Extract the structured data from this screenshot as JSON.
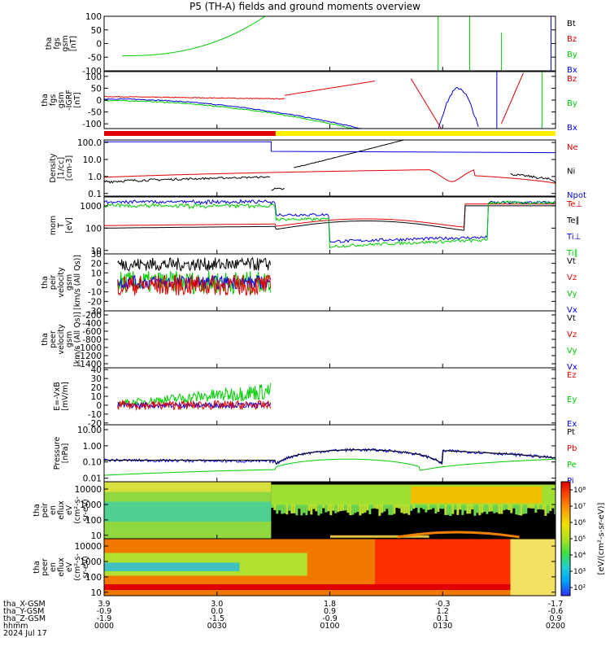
{
  "title": "P5 (TH-A) fields and ground moments overview",
  "date_label": "2024 Jul 17",
  "colors": {
    "black": "#000000",
    "red": "#e00000",
    "green": "#00cc00",
    "blue": "#0000e0",
    "yellow": "#ffee00"
  },
  "chart_data": [
    {
      "type": "line",
      "ylabel": [
        "tha",
        "fgs",
        "gsm",
        "[nT]"
      ],
      "yticks": [
        "100",
        "50",
        "0",
        "-50",
        "-100"
      ],
      "ylim": [
        -100,
        100
      ],
      "series": [
        {
          "name": "Bt",
          "color": "#000000"
        },
        {
          "name": "Bz",
          "color": "#e00000"
        },
        {
          "name": "By",
          "color": "#00cc00"
        },
        {
          "name": "Bx",
          "color": "#0000e0"
        }
      ]
    },
    {
      "type": "line",
      "ylabel": [
        "tha",
        "fgs",
        "gsm",
        "-IGRF",
        "[nT]"
      ],
      "yticks": [
        "100",
        "50",
        "0",
        "-50",
        "-100"
      ],
      "ylim": [
        -120,
        120
      ],
      "series": [
        {
          "name": "Bz",
          "color": "#e00000"
        },
        {
          "name": "By",
          "color": "#00cc00"
        },
        {
          "name": "Bx",
          "color": "#0000e0"
        }
      ]
    },
    {
      "type": "line",
      "ylabel": [
        "Density",
        "[1/cc]",
        "[cm-3]"
      ],
      "yticks": [
        "100.0",
        "10.0",
        "1.0",
        "0.1"
      ],
      "scale": "log",
      "ylim": [
        0.07,
        140
      ],
      "series": [
        {
          "name": "Ne",
          "color": "#e00000"
        },
        {
          "name": "Ni",
          "color": "#000000"
        },
        {
          "name": "Npot",
          "color": "#0000e0"
        }
      ]
    },
    {
      "type": "line",
      "ylabel": [
        "mom",
        "T",
        "[eV]"
      ],
      "yticks": [
        "1000",
        "100",
        "10"
      ],
      "scale": "log",
      "ylim": [
        7,
        2500
      ],
      "series": [
        {
          "name": "Te⊥",
          "color": "#e00000"
        },
        {
          "name": "Te∥",
          "color": "#000000"
        },
        {
          "name": "Ti⊥",
          "color": "#0000e0"
        },
        {
          "name": "Ti∥",
          "color": "#00cc00"
        }
      ]
    },
    {
      "type": "line",
      "ylabel": [
        "tha",
        "peir",
        "velocity",
        "gsm",
        "[km/s (All Qs)]"
      ],
      "yticks": [
        "30",
        "20",
        "10",
        "0",
        "-10",
        "-20",
        "-30"
      ],
      "ylim": [
        -30,
        30
      ],
      "series": [
        {
          "name": "Vt",
          "color": "#000000"
        },
        {
          "name": "Vz",
          "color": "#e00000"
        },
        {
          "name": "Vy",
          "color": "#00cc00"
        },
        {
          "name": "Vx",
          "color": "#0000e0"
        }
      ]
    },
    {
      "type": "line",
      "ylabel": [
        "tha",
        "peer",
        "velocity",
        "gsm",
        "[km/s (All Qs)]"
      ],
      "yticks": [
        "-200",
        "-400",
        "-600",
        "-800",
        "-1000",
        "-1200",
        "-1400"
      ],
      "ylim": [
        -1500,
        -100
      ],
      "series": [
        {
          "name": "Vt",
          "color": "#000000"
        },
        {
          "name": "Vz",
          "color": "#e00000"
        },
        {
          "name": "Vy",
          "color": "#00cc00"
        },
        {
          "name": "Vx",
          "color": "#0000e0"
        }
      ]
    },
    {
      "type": "line",
      "ylabel": [
        "E=-VxB",
        "[mV/m]"
      ],
      "yticks": [
        "40",
        "30",
        "20",
        "10",
        "0",
        "-10",
        "-20"
      ],
      "ylim": [
        -22,
        42
      ],
      "series": [
        {
          "name": "Ez",
          "color": "#e00000"
        },
        {
          "name": "Ey",
          "color": "#00cc00"
        },
        {
          "name": "Ex",
          "color": "#0000e0"
        }
      ]
    },
    {
      "type": "line",
      "ylabel": [
        "Pressure",
        "[nPa]"
      ],
      "yticks": [
        "10.00",
        "1.00",
        "0.10",
        "0.01"
      ],
      "scale": "log",
      "ylim": [
        0.006,
        20
      ],
      "series": [
        {
          "name": "Pt",
          "color": "#000000"
        },
        {
          "name": "Pb",
          "color": "#e00000"
        },
        {
          "name": "Pe",
          "color": "#00cc00"
        },
        {
          "name": "Pi",
          "color": "#0000e0"
        }
      ]
    },
    {
      "type": "heatmap",
      "ylabel": [
        "tha",
        "peir",
        "en",
        "eflux",
        "eV",
        "(cm²-s-",
        "sr-eV)"
      ],
      "yticks": [
        "10000",
        "1000",
        "100",
        "10"
      ],
      "scale": "log",
      "ylim": [
        6,
        30000
      ]
    },
    {
      "type": "heatmap",
      "ylabel": [
        "tha",
        "peer",
        "en",
        "eflux",
        "eV",
        "(cm²-s-",
        "sr-eV)"
      ],
      "yticks": [
        "10000",
        "1000",
        "100",
        "10"
      ],
      "scale": "log",
      "ylim": [
        6,
        30000
      ]
    }
  ],
  "colorbar": {
    "label": "[eV/(cm²-s-sr-eV)]",
    "ticks": [
      "10⁸",
      "10⁷",
      "10⁶",
      "10⁵",
      "10⁴",
      "10³",
      "10²"
    ]
  },
  "x_axis": {
    "row_labels": [
      "tha_X-GSM",
      "tha_Y-GSM",
      "tha_Z-GSM",
      "hhmm",
      "2024 Jul 17"
    ],
    "ticks": [
      {
        "x_gsm": "3.9",
        "y_gsm": "-0.9",
        "z_gsm": "-1.9",
        "hhmm": "0000"
      },
      {
        "x_gsm": "3.0",
        "y_gsm": "0.0",
        "z_gsm": "-1.5",
        "hhmm": "0030"
      },
      {
        "x_gsm": "1.8",
        "y_gsm": "0.9",
        "z_gsm": "-0.9",
        "hhmm": "0100"
      },
      {
        "x_gsm": "-0.3",
        "y_gsm": "1.2",
        "z_gsm": "0.1",
        "hhmm": "0130"
      },
      {
        "x_gsm": "-1.7",
        "y_gsm": "-0.6",
        "z_gsm": "0.9",
        "hhmm": "0200"
      }
    ]
  }
}
